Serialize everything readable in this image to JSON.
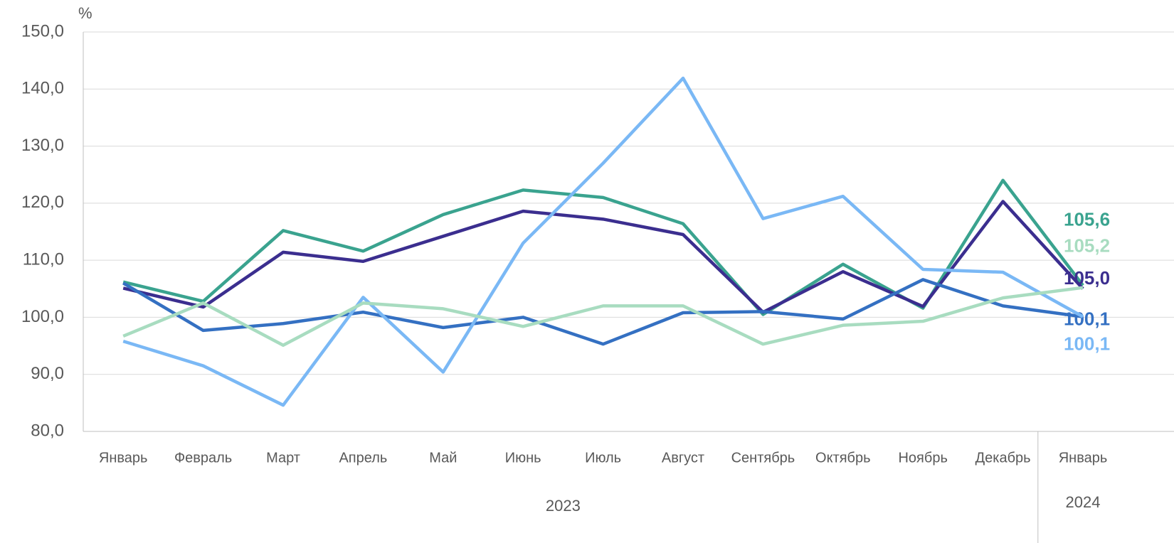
{
  "chart_data": {
    "type": "line",
    "y_unit": "%",
    "categories": [
      "Январь",
      "Февраль",
      "Март",
      "Апрель",
      "Май",
      "Июнь",
      "Июль",
      "Август",
      "Сентябрь",
      "Октябрь",
      "Ноябрь",
      "Декабрь",
      "Январь"
    ],
    "groups": [
      {
        "label": "2023",
        "span": 12
      },
      {
        "label": "2024",
        "span": 1
      }
    ],
    "ylim": [
      80,
      150
    ],
    "yticks": [
      {
        "value": 80,
        "label": "80,0"
      },
      {
        "value": 90,
        "label": "90,0"
      },
      {
        "value": 100,
        "label": "100,0"
      },
      {
        "value": 110,
        "label": "110,0"
      },
      {
        "value": 120,
        "label": "120,0"
      },
      {
        "value": 130,
        "label": "130,0"
      },
      {
        "value": 140,
        "label": "140,0"
      },
      {
        "value": 150,
        "label": "150,0"
      }
    ],
    "grid": true,
    "series": [
      {
        "color": "#3aa38f",
        "values": [
          106.2,
          102.8,
          115.2,
          111.6,
          118.0,
          122.3,
          121.0,
          116.4,
          100.5,
          109.3,
          101.6,
          124.0,
          105.6
        ],
        "value_labels": [
          null,
          null,
          null,
          null,
          null,
          null,
          null,
          null,
          null,
          null,
          null,
          null,
          "105,6"
        ]
      },
      {
        "color": "#3b2e8f",
        "values": [
          105.1,
          101.8,
          111.4,
          109.8,
          114.2,
          118.6,
          117.2,
          114.5,
          100.9,
          108.0,
          101.9,
          120.3,
          105.0
        ],
        "value_labels": [
          null,
          null,
          null,
          null,
          null,
          null,
          null,
          null,
          null,
          null,
          null,
          null,
          "105,0"
        ]
      },
      {
        "color": "#3470c2",
        "values": [
          106.0,
          97.7,
          98.9,
          100.9,
          98.2,
          100.0,
          95.3,
          100.8,
          101.0,
          99.7,
          106.6,
          102.0,
          100.1
        ],
        "value_labels": [
          null,
          null,
          null,
          null,
          null,
          null,
          null,
          null,
          null,
          null,
          null,
          null,
          "100,1"
        ]
      },
      {
        "color": "#7ab8f5",
        "values": [
          95.8,
          91.5,
          84.6,
          103.5,
          90.4,
          113.0,
          127.0,
          141.9,
          117.3,
          121.2,
          108.4,
          107.9,
          100.1
        ],
        "value_labels": [
          null,
          null,
          null,
          null,
          null,
          null,
          null,
          null,
          null,
          null,
          null,
          null,
          "100,1"
        ]
      },
      {
        "color": "#a8dcc0",
        "values": [
          96.7,
          102.5,
          95.1,
          102.5,
          101.5,
          98.4,
          102.0,
          102.0,
          95.3,
          98.6,
          99.3,
          103.4,
          105.2
        ],
        "value_labels": [
          null,
          null,
          null,
          null,
          null,
          null,
          null,
          null,
          null,
          null,
          null,
          null,
          "105,2"
        ]
      }
    ]
  }
}
